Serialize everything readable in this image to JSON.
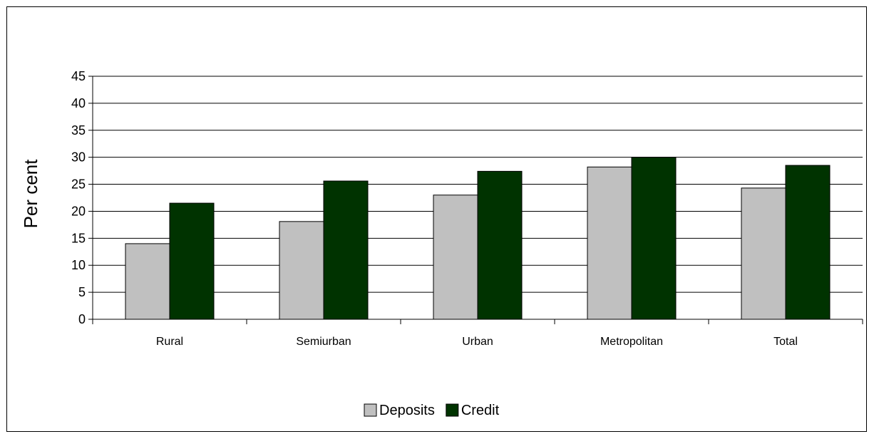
{
  "chart_data": {
    "type": "bar",
    "title": "",
    "xlabel": "",
    "ylabel": "Per cent",
    "ylim": [
      0,
      45
    ],
    "yticks": [
      0,
      5,
      10,
      15,
      20,
      25,
      30,
      35,
      40,
      45
    ],
    "grid": true,
    "legend_position": "bottom-center",
    "categories": [
      "Rural",
      "Semiurban",
      "Urban",
      "Metropolitan",
      "Total"
    ],
    "series": [
      {
        "name": "Deposits",
        "color": "#c0c0c0",
        "values": [
          14.0,
          18.1,
          23.0,
          28.2,
          24.3
        ]
      },
      {
        "name": "Credit",
        "color": "#003300",
        "values": [
          21.5,
          25.6,
          27.4,
          30.0,
          28.5
        ]
      }
    ]
  }
}
